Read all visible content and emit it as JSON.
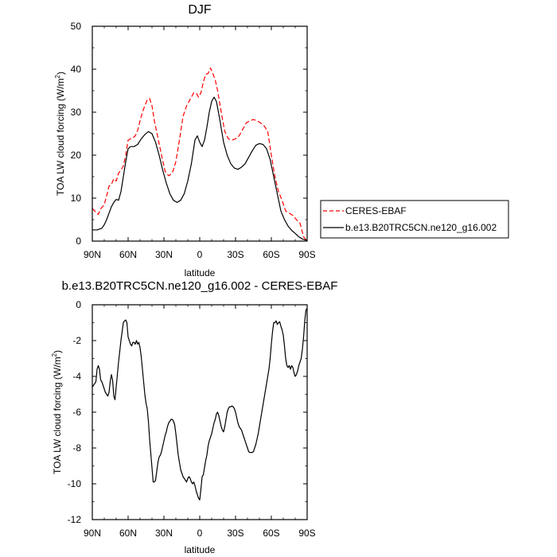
{
  "chart_data": [
    {
      "type": "line",
      "title": "DJF",
      "xlabel": "latitude",
      "ylabel": "TOA LW cloud forcing (W/m",
      "ylabel_sup": "2",
      "ylabel_close": ")",
      "xlim": [
        90,
        -90
      ],
      "ylim": [
        0,
        50
      ],
      "xticks": [
        {
          "value": 90,
          "label": "90N"
        },
        {
          "value": 60,
          "label": "60N"
        },
        {
          "value": 30,
          "label": "30N"
        },
        {
          "value": 0,
          "label": "0"
        },
        {
          "value": -30,
          "label": "30S"
        },
        {
          "value": -60,
          "label": "60S"
        },
        {
          "value": -90,
          "label": "90S"
        }
      ],
      "yticks": [
        {
          "value": 0,
          "label": "0"
        },
        {
          "value": 10,
          "label": "10"
        },
        {
          "value": 20,
          "label": "20"
        },
        {
          "value": 30,
          "label": "30"
        },
        {
          "value": 40,
          "label": "40"
        },
        {
          "value": 50,
          "label": "50"
        }
      ],
      "legend": {
        "placement": "right",
        "items": [
          "CERES-EBAF",
          "b.e13.B20TRC5CN.ne120_g16.002"
        ]
      },
      "series": [
        {
          "name": "CERES-EBAF",
          "color": "#ff0000",
          "style": "dashed",
          "x": [
            90,
            88,
            85,
            83,
            80,
            78,
            76,
            74,
            72,
            70,
            68,
            66,
            64,
            62,
            60,
            58,
            56,
            54,
            52,
            50,
            48,
            46,
            44,
            42,
            40,
            38,
            35,
            32,
            29,
            26,
            23,
            20,
            17,
            14,
            11,
            8,
            5,
            3,
            1,
            -1,
            -3,
            -5,
            -7,
            -9,
            -11,
            -13,
            -15,
            -18,
            -21,
            -24,
            -27,
            -30,
            -33,
            -36,
            -39,
            -42,
            -45,
            -48,
            -51,
            -54,
            -57,
            -60,
            -63,
            -66,
            -69,
            -72,
            -75,
            -78,
            -81,
            -84,
            -87,
            -90
          ],
          "values": [
            7.6,
            7.0,
            6.2,
            7.5,
            8.5,
            10.5,
            12.8,
            13.2,
            14.5,
            14.0,
            15.8,
            16.5,
            17.5,
            20.0,
            23.5,
            23.8,
            24.0,
            24.5,
            25.8,
            28.0,
            30.0,
            31.5,
            32.8,
            33.2,
            31.5,
            28.0,
            24.0,
            20.0,
            16.2,
            15.2,
            15.8,
            18.5,
            23.5,
            29.0,
            31.5,
            33.0,
            34.5,
            34.5,
            33.5,
            34.5,
            37.0,
            38.8,
            39.0,
            40.3,
            39.0,
            37.5,
            35.0,
            30.0,
            25.5,
            23.8,
            23.5,
            23.8,
            24.5,
            26.0,
            27.5,
            28.0,
            28.3,
            28.0,
            27.5,
            26.8,
            25.5,
            20.0,
            15.0,
            11.5,
            9.5,
            7.0,
            6.5,
            6.0,
            5.0,
            4.2,
            1.0,
            0.0
          ]
        },
        {
          "name": "b.e13.B20TRC5CN.ne120_g16.002",
          "color": "#000000",
          "style": "solid",
          "x": [
            90,
            86,
            82,
            80,
            78,
            76,
            74,
            72,
            70,
            68,
            66,
            64,
            62,
            60,
            58,
            55,
            52,
            49,
            46,
            43,
            40,
            37,
            34,
            31,
            28,
            25,
            22,
            19,
            16,
            13,
            10,
            7,
            4,
            2,
            0,
            -2,
            -4,
            -6,
            -8,
            -10,
            -12,
            -14,
            -17,
            -20,
            -23,
            -26,
            -29,
            -32,
            -35,
            -38,
            -41,
            -44,
            -47,
            -50,
            -53,
            -56,
            -59,
            -62,
            -65,
            -68,
            -71,
            -74,
            -77,
            -80,
            -83,
            -86,
            -88,
            -90
          ],
          "values": [
            2.6,
            2.6,
            3.0,
            3.8,
            5.0,
            6.5,
            8.0,
            9.0,
            9.7,
            9.5,
            11.5,
            15.0,
            18.5,
            21.5,
            22.0,
            22.0,
            22.5,
            23.8,
            24.8,
            25.5,
            25.0,
            23.0,
            20.0,
            16.5,
            13.5,
            11.0,
            9.5,
            9.0,
            9.5,
            11.0,
            14.0,
            18.0,
            23.5,
            24.5,
            23.0,
            22.0,
            23.5,
            26.5,
            30.0,
            32.5,
            33.5,
            32.5,
            28.0,
            23.0,
            20.0,
            18.0,
            17.0,
            16.7,
            17.2,
            18.0,
            19.5,
            21.0,
            22.3,
            22.7,
            22.5,
            21.5,
            19.0,
            15.0,
            11.0,
            7.0,
            5.0,
            3.5,
            2.5,
            1.8,
            1.0,
            0.5,
            0.3,
            0.2
          ]
        }
      ]
    },
    {
      "type": "line",
      "title": "b.e13.B20TRC5CN.ne120_g16.002 - CERES-EBAF",
      "xlabel": "latitude",
      "ylabel": "TOA LW cloud forcing (W/m",
      "ylabel_sup": "2",
      "ylabel_close": ")",
      "xlim": [
        90,
        -90
      ],
      "ylim": [
        -12,
        0
      ],
      "xticks": [
        {
          "value": 90,
          "label": "90N"
        },
        {
          "value": 60,
          "label": "60N"
        },
        {
          "value": 30,
          "label": "30N"
        },
        {
          "value": 0,
          "label": "0"
        },
        {
          "value": -30,
          "label": "30S"
        },
        {
          "value": -60,
          "label": "60S"
        },
        {
          "value": -90,
          "label": "90S"
        }
      ],
      "yticks": [
        {
          "value": 0,
          "label": "0"
        },
        {
          "value": -2,
          "label": "-2"
        },
        {
          "value": -4,
          "label": "-4"
        },
        {
          "value": -6,
          "label": "-6"
        },
        {
          "value": -8,
          "label": "-8"
        },
        {
          "value": -10,
          "label": "-10"
        },
        {
          "value": -12,
          "label": "-12"
        }
      ],
      "series": [
        {
          "name": "b.e13.B20TRC5CN.ne120_g16.002 - CERES-EBAF",
          "color": "#000000",
          "style": "solid",
          "x": [
            90,
            89,
            88,
            87,
            86,
            85,
            84,
            83,
            82,
            81,
            80,
            79,
            78,
            77,
            76,
            75,
            74,
            73,
            72,
            71,
            70,
            69,
            68,
            67,
            66,
            65,
            64,
            63,
            62,
            61,
            60,
            59,
            58,
            57,
            56,
            55,
            54,
            53,
            52,
            51,
            50,
            49,
            48,
            47,
            46,
            45,
            44,
            43,
            42,
            41,
            40,
            39,
            38,
            37,
            36,
            35,
            34,
            33,
            32,
            31,
            30,
            29,
            28,
            27,
            26,
            25,
            24,
            23,
            22,
            21,
            20,
            19,
            18,
            17,
            16,
            15,
            14,
            13,
            12,
            11,
            10,
            9,
            8,
            7,
            6,
            5,
            4,
            3,
            2,
            1,
            0,
            -1,
            -2,
            -3,
            -4,
            -5,
            -6,
            -7,
            -8,
            -9,
            -10,
            -11,
            -12,
            -13,
            -14,
            -15,
            -16,
            -17,
            -18,
            -19,
            -20,
            -21,
            -22,
            -23,
            -24,
            -25,
            -26,
            -27,
            -28,
            -29,
            -30,
            -31,
            -32,
            -33,
            -34,
            -35,
            -36,
            -37,
            -38,
            -39,
            -40,
            -41,
            -42,
            -43,
            -44,
            -45,
            -46,
            -47,
            -48,
            -49,
            -50,
            -51,
            -52,
            -53,
            -54,
            -55,
            -56,
            -57,
            -58,
            -59,
            -60,
            -61,
            -62,
            -63,
            -64,
            -65,
            -66,
            -67,
            -68,
            -69,
            -70,
            -71,
            -72,
            -73,
            -74,
            -75,
            -76,
            -77,
            -78,
            -79,
            -80,
            -81,
            -82,
            -83,
            -84,
            -85,
            -86,
            -87,
            -88,
            -89,
            -90
          ],
          "values": [
            -4.6,
            -4.5,
            -4.4,
            -4.3,
            -3.6,
            -3.4,
            -3.6,
            -4.2,
            -4.3,
            -4.5,
            -4.7,
            -4.9,
            -5.0,
            -5.1,
            -4.9,
            -4.3,
            -3.9,
            -4.2,
            -5.1,
            -5.3,
            -4.6,
            -3.9,
            -3.2,
            -2.6,
            -2.0,
            -1.5,
            -1.0,
            -0.9,
            -0.85,
            -1.0,
            -1.8,
            -2.0,
            -2.2,
            -2.3,
            -2.1,
            -2.1,
            -2.2,
            -2.0,
            -2.2,
            -2.1,
            -2.4,
            -2.9,
            -3.6,
            -4.3,
            -5.0,
            -5.5,
            -5.8,
            -6.5,
            -7.5,
            -8.3,
            -9.1,
            -9.9,
            -9.9,
            -9.8,
            -9.3,
            -8.8,
            -8.5,
            -8.4,
            -8.2,
            -7.9,
            -7.6,
            -7.3,
            -7.1,
            -6.8,
            -6.6,
            -6.5,
            -6.4,
            -6.4,
            -6.5,
            -6.7,
            -7.2,
            -7.8,
            -8.4,
            -8.8,
            -9.2,
            -9.4,
            -9.6,
            -9.7,
            -9.8,
            -9.9,
            -9.7,
            -9.6,
            -9.7,
            -9.9,
            -10.0,
            -9.9,
            -10.1,
            -10.4,
            -10.6,
            -10.8,
            -10.9,
            -10.3,
            -9.6,
            -9.5,
            -9.1,
            -8.7,
            -8.4,
            -7.9,
            -7.6,
            -7.4,
            -7.2,
            -6.9,
            -6.6,
            -6.4,
            -6.1,
            -6.0,
            -6.2,
            -6.5,
            -6.8,
            -7.0,
            -7.1,
            -6.8,
            -6.4,
            -6.0,
            -5.8,
            -5.7,
            -5.7,
            -5.65,
            -5.7,
            -5.8,
            -6.0,
            -6.3,
            -6.6,
            -6.8,
            -6.9,
            -7.0,
            -7.2,
            -7.4,
            -7.6,
            -7.8,
            -8.0,
            -8.2,
            -8.25,
            -8.25,
            -8.25,
            -8.2,
            -8.0,
            -7.8,
            -7.5,
            -7.2,
            -6.8,
            -6.4,
            -6.0,
            -5.6,
            -5.2,
            -4.8,
            -4.4,
            -4.0,
            -3.6,
            -3.0,
            -2.2,
            -1.5,
            -1.0,
            -1.0,
            -0.9,
            -1.1,
            -1.0,
            -0.95,
            -1.2,
            -1.4,
            -1.7,
            -2.3,
            -3.0,
            -3.4,
            -3.5,
            -3.4,
            -3.6,
            -3.4,
            -3.5,
            -3.8,
            -4.0,
            -3.9,
            -3.7,
            -3.4,
            -3.2,
            -3.0,
            -2.5,
            -1.8,
            -0.9,
            -0.3,
            -0.2
          ]
        }
      ]
    }
  ]
}
